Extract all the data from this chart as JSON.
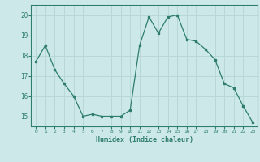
{
  "x": [
    0,
    1,
    2,
    3,
    4,
    5,
    6,
    7,
    8,
    9,
    10,
    11,
    12,
    13,
    14,
    15,
    16,
    17,
    18,
    19,
    20,
    21,
    22,
    23
  ],
  "y": [
    17.7,
    18.5,
    17.3,
    16.6,
    16.0,
    15.0,
    15.1,
    15.0,
    15.0,
    15.0,
    15.3,
    18.5,
    19.9,
    19.1,
    19.9,
    20.0,
    18.8,
    18.7,
    18.3,
    17.8,
    16.6,
    16.4,
    15.5,
    14.7
  ],
  "xlabel": "Humidex (Indice chaleur)",
  "ylabel": "",
  "ylim": [
    14.5,
    20.5
  ],
  "xlim": [
    -0.5,
    23.5
  ],
  "line_color": "#2e7d6e",
  "bg_color": "#cce8e8",
  "grid_color": "#b8d8d8",
  "tick_color": "#2e7d6e",
  "label_color": "#2e7d6e",
  "yticks": [
    15,
    16,
    17,
    18,
    19,
    20
  ],
  "xticks": [
    0,
    1,
    2,
    3,
    4,
    5,
    6,
    7,
    8,
    9,
    10,
    11,
    12,
    13,
    14,
    15,
    16,
    17,
    18,
    19,
    20,
    21,
    22,
    23
  ]
}
